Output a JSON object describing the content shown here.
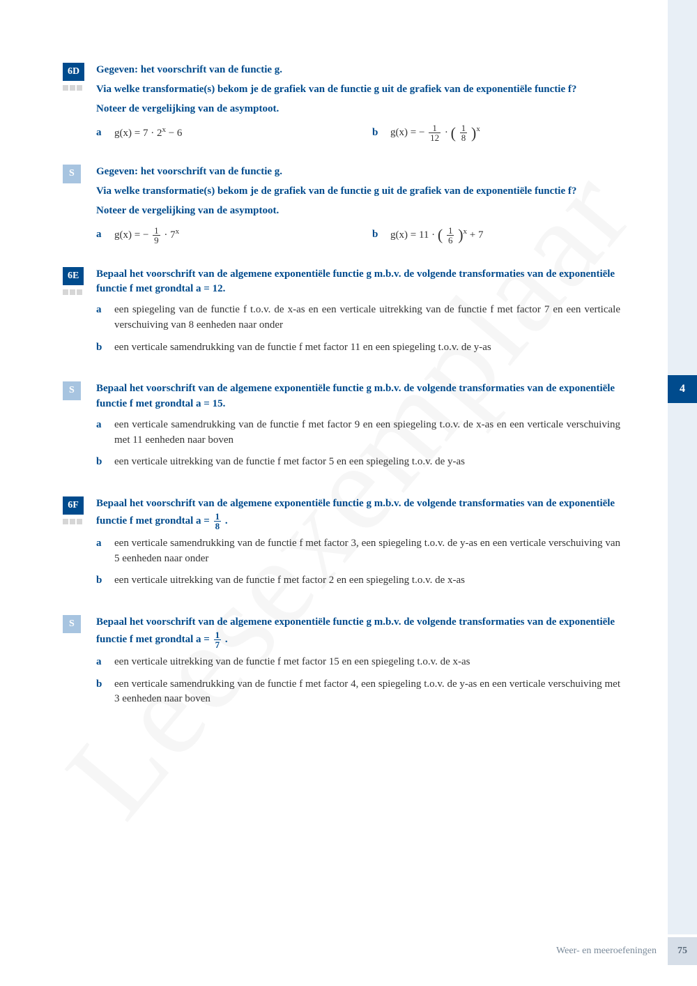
{
  "watermark": "Leesexemplaar",
  "side_tab": "4",
  "footer": {
    "text": "Weer- en meeroefeningen",
    "page": "75"
  },
  "ex6D": {
    "badge": "6D",
    "p1": "Gegeven: het voorschrift van de functie g.",
    "p2": "Via welke transformatie(s) bekom je de grafiek van de functie g uit de grafiek van de exponentiële functie f?",
    "p3": "Noteer de vergelijking van de asymptoot.",
    "a_label": "a",
    "a": "g(x) = 7 · 2",
    "a_sup": "x",
    "a_tail": " − 6",
    "b_label": "b",
    "b_pre": "g(x) = −",
    "b_frac1_n": "1",
    "b_frac1_d": "12",
    "b_mid": " · ",
    "b_frac2_n": "1",
    "b_frac2_d": "8",
    "b_sup": "x"
  },
  "exS1": {
    "badge": "S",
    "p1": "Gegeven: het voorschrift van de functie g.",
    "p2": "Via welke transformatie(s) bekom je de grafiek van de functie g uit de grafiek van de exponentiële functie f?",
    "p3": "Noteer de vergelijking van de asymptoot.",
    "a_label": "a",
    "a_pre": "g(x) = −",
    "a_frac_n": "1",
    "a_frac_d": "9",
    "a_mid": " · 7",
    "a_sup": "x",
    "b_label": "b",
    "b_pre": "g(x) = 11 · ",
    "b_frac_n": "1",
    "b_frac_d": "6",
    "b_sup": "x",
    "b_tail": " + 7"
  },
  "ex6E": {
    "badge": "6E",
    "p1": "Bepaal het voorschrift van de algemene exponentiële functie g m.b.v. de volgende transformaties van de exponentiële functie f met grondtal a = 12.",
    "a_label": "a",
    "a": "een spiegeling van de functie f t.o.v. de x-as en een verticale uitrekking van de functie f met factor 7 en een verticale verschuiving van 8 eenheden naar onder",
    "b_label": "b",
    "b": "een verticale samendrukking van de functie f met factor 11 en een spiegeling t.o.v. de y-as"
  },
  "exS2": {
    "badge": "S",
    "p1": "Bepaal het voorschrift van de algemene exponentiële functie g m.b.v. de volgende transformaties van de exponentiële functie f met grondtal a = 15.",
    "a_label": "a",
    "a": "een verticale samendrukking van de functie f met factor 9 en een spiegeling t.o.v. de x-as en een verticale verschuiving met 11 eenheden naar boven",
    "b_label": "b",
    "b": "een verticale uitrekking van de functie f met factor 5 en een spiegeling t.o.v. de y-as"
  },
  "ex6F": {
    "badge": "6F",
    "p1_pre": "Bepaal het voorschrift van de algemene exponentiële functie g m.b.v. de volgende transformaties van de exponentiële functie f met grondtal a = ",
    "frac_n": "1",
    "frac_d": "8",
    "p1_post": " .",
    "a_label": "a",
    "a": "een verticale samendrukking van de functie f met factor 3, een spiegeling t.o.v. de y-as en een verticale verschuiving van 5 eenheden naar onder",
    "b_label": "b",
    "b": "een verticale uitrekking van de functie f met factor 2 en een spiegeling t.o.v. de x-as"
  },
  "exS3": {
    "badge": "S",
    "p1_pre": "Bepaal het voorschrift van de algemene exponentiële functie g m.b.v. de volgende transformaties van de exponentiële functie f met grondtal a = ",
    "frac_n": "1",
    "frac_d": "7",
    "p1_post": " .",
    "a_label": "a",
    "a": "een verticale uitrekking van de functie f met factor 15 en een spiegeling t.o.v. de x-as",
    "b_label": "b",
    "b": "een verticale samendrukking van de functie f met factor 4, een spiegeling t.o.v. de y-as en een verticale verschuiving met 3 eenheden naar boven"
  }
}
